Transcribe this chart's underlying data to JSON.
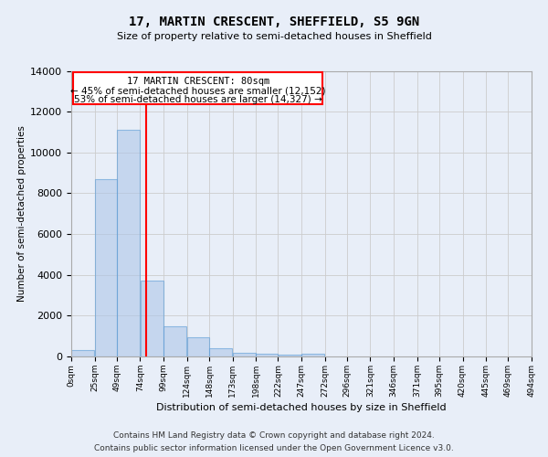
{
  "title": "17, MARTIN CRESCENT, SHEFFIELD, S5 9GN",
  "subtitle": "Size of property relative to semi-detached houses in Sheffield",
  "xlabel": "Distribution of semi-detached houses by size in Sheffield",
  "ylabel": "Number of semi-detached properties",
  "property_size": 80,
  "property_label": "17 MARTIN CRESCENT: 80sqm",
  "pct_smaller": 45,
  "n_smaller": 12152,
  "pct_larger": 53,
  "n_larger": 14327,
  "bin_edges": [
    0,
    25,
    49,
    74,
    99,
    124,
    148,
    173,
    198,
    222,
    247,
    272,
    296,
    321,
    346,
    371,
    395,
    420,
    445,
    469,
    494
  ],
  "bar_heights": [
    300,
    8700,
    11100,
    3700,
    1500,
    950,
    400,
    200,
    150,
    100,
    150,
    0,
    0,
    0,
    0,
    0,
    0,
    0,
    0,
    0
  ],
  "bar_color": "#aec6e8",
  "bar_edge_color": "#5b9bd5",
  "bar_alpha": 0.6,
  "vline_color": "red",
  "vline_x": 80,
  "ylim": [
    0,
    14000
  ],
  "yticks": [
    0,
    2000,
    4000,
    6000,
    8000,
    10000,
    12000,
    14000
  ],
  "grid_color": "#cccccc",
  "annotation_box_color": "red",
  "footer_line1": "Contains HM Land Registry data © Crown copyright and database right 2024.",
  "footer_line2": "Contains public sector information licensed under the Open Government Licence v3.0.",
  "bg_color": "#e8eef8"
}
